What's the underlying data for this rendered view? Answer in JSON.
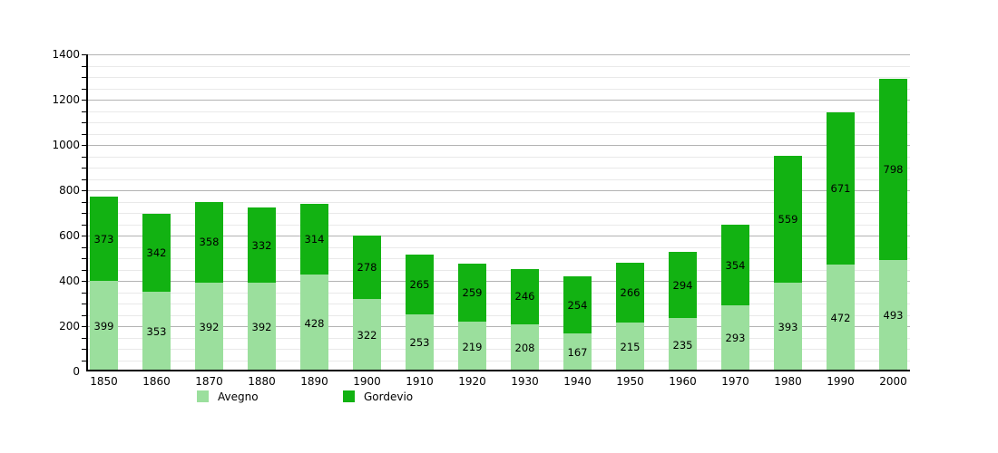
{
  "chart_data": {
    "type": "bar",
    "stacked": true,
    "title": "",
    "xlabel": "",
    "ylabel": "",
    "categories": [
      "1850",
      "1860",
      "1870",
      "1880",
      "1890",
      "1900",
      "1910",
      "1920",
      "1930",
      "1940",
      "1950",
      "1960",
      "1970",
      "1980",
      "1990",
      "2000"
    ],
    "series": [
      {
        "name": "Avegno",
        "color": "#9bdf9d",
        "values": [
          399,
          353,
          392,
          392,
          428,
          322,
          253,
          219,
          208,
          167,
          215,
          235,
          293,
          393,
          472,
          493
        ]
      },
      {
        "name": "Gordevio",
        "color": "#12b212",
        "values": [
          373,
          342,
          358,
          332,
          314,
          278,
          265,
          259,
          246,
          254,
          266,
          294,
          354,
          559,
          671,
          798
        ]
      }
    ],
    "ylim": [
      0,
      1400
    ],
    "ytick_major": 200,
    "ytick_minor": 50,
    "yticklabels": [
      "0",
      "200",
      "400",
      "600",
      "800",
      "1000",
      "1200",
      "1400"
    ],
    "grid": "on",
    "legend_position": "bottom",
    "value_labels": "inside-segments",
    "axis_color": "#000000",
    "major_grid_color": "#b3b3b3",
    "minor_grid_color": "#e9e9e9"
  },
  "legend": {
    "items": [
      {
        "label": "Avegno",
        "color": "#9bdf9d"
      },
      {
        "label": "Gordevio",
        "color": "#12b212"
      }
    ]
  }
}
